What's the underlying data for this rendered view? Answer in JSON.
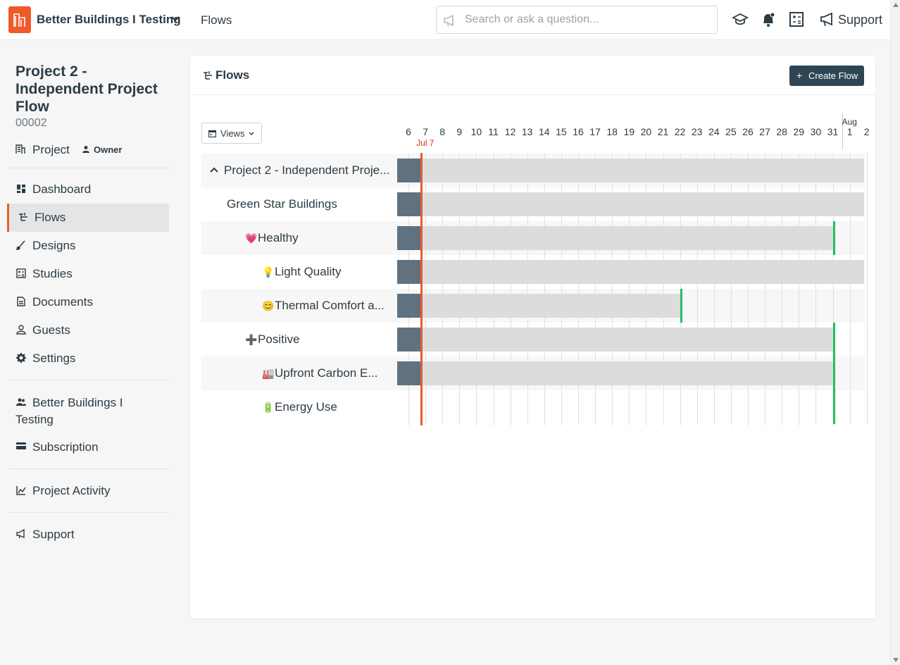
{
  "topbar": {
    "org_name": "Better Buildings I Testing",
    "section": "Flows",
    "search_placeholder": "Search or ask a question...",
    "support_label": "Support",
    "icons": [
      "logo-icon",
      "chevron-down-icon",
      "megaphone-icon",
      "graduation-cap-icon",
      "bell-icon",
      "calculator-icon",
      "support-megaphone-icon"
    ],
    "brand_color": "#ef5a2a"
  },
  "sidebar": {
    "project_title": "Project 2 - Independent Project Flow",
    "project_code": "00002",
    "project_type": "Project",
    "role": "Owner",
    "nav": [
      {
        "label": "Dashboard",
        "icon": "dashboard-icon"
      },
      {
        "label": "Flows",
        "icon": "flows-icon",
        "active": true
      },
      {
        "label": "Designs",
        "icon": "brush-icon"
      },
      {
        "label": "Studies",
        "icon": "calculator-icon"
      },
      {
        "label": "Documents",
        "icon": "document-icon"
      },
      {
        "label": "Guests",
        "icon": "user-icon"
      },
      {
        "label": "Settings",
        "icon": "gear-icon"
      }
    ],
    "org_label": "Better Buildings I Testing",
    "subscription_label": "Subscription",
    "activity_label": "Project Activity",
    "support_label": "Support"
  },
  "card": {
    "title": "Flows",
    "create_label": "Create Flow",
    "views_label": "Views"
  },
  "timeline": {
    "dates": [
      "6",
      "7",
      "8",
      "9",
      "10",
      "11",
      "12",
      "13",
      "14",
      "15",
      "16",
      "17",
      "18",
      "19",
      "20",
      "21",
      "22",
      "23",
      "24",
      "25",
      "26",
      "27",
      "28",
      "29",
      "30",
      "31",
      "1",
      "2"
    ],
    "month_label": "Aug",
    "today_label": "Jul 7",
    "today_color": "#ef5a2a",
    "deadline_color": "#20c05c",
    "rows": [
      {
        "label": "Project 2 - Independent Proje...",
        "icon": "chevron-up-icon",
        "emoji": "",
        "level": 0,
        "end": "open"
      },
      {
        "label": "Green Star Buildings",
        "emoji": "",
        "level": 1,
        "end": "open"
      },
      {
        "label": "Healthy",
        "emoji": "💗",
        "level": 2,
        "end": "31"
      },
      {
        "label": "Light Quality",
        "emoji": "💡",
        "level": 3,
        "end": "open"
      },
      {
        "label": "Thermal Comfort a...",
        "emoji": "😊",
        "level": 3,
        "end": "22"
      },
      {
        "label": "Positive",
        "emoji": "➕",
        "level": 2,
        "end": "31"
      },
      {
        "label": "Upfront Carbon E...",
        "emoji": "🏭",
        "level": 3,
        "end": "31"
      },
      {
        "label": "Energy Use",
        "emoji": "🔋",
        "level": 3,
        "end": "31"
      }
    ]
  }
}
